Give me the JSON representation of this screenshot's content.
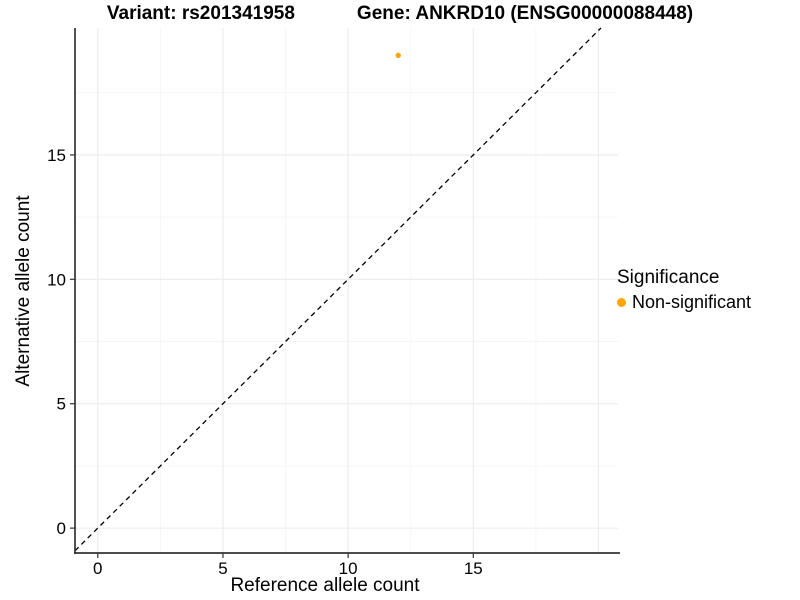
{
  "titles": {
    "variant": "Variant: rs201341958",
    "gene": "Gene: ANKRD10 (ENSG00000088448)"
  },
  "chart_data": {
    "type": "scatter",
    "xlabel": "Reference allele count",
    "ylabel": "Alternative allele count",
    "xlim": [
      -0.91,
      20.78
    ],
    "ylim": [
      -1.0,
      20.1
    ],
    "x_tick_labels": [
      0,
      5,
      10,
      15
    ],
    "y_tick_labels": [
      0,
      5,
      10,
      15
    ],
    "x_major_gridlines": [
      0,
      5,
      10,
      15,
      20
    ],
    "y_major_gridlines": [
      0,
      5,
      10,
      15
    ],
    "x_minor_gridlines": [
      2.5,
      7.5,
      12.5,
      17.5
    ],
    "y_minor_gridlines": [
      2.5,
      7.5,
      12.5,
      17.5
    ],
    "grid": true,
    "legend_position": "right",
    "reference_line": {
      "style": "dashed",
      "slope": 1,
      "intercept": 0
    },
    "points": [
      {
        "x": 12,
        "y": 19,
        "significance": "Non-significant"
      }
    ],
    "point_color": "#FFA500",
    "point_radius": 2.7,
    "colors": {
      "axis": "#333333",
      "text": "#000000",
      "grid_major": "#EBEBEB",
      "grid_minor": "#F5F5F5",
      "reference_line": "#000000"
    },
    "legend": {
      "title": "Significance",
      "items": [
        {
          "label": "Non-significant",
          "color": "#FFA500"
        }
      ]
    }
  }
}
